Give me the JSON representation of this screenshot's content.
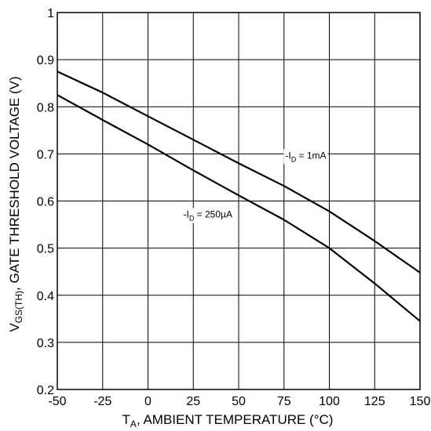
{
  "chart_data": {
    "type": "line",
    "title": "",
    "xlabel": "AMBIENT TEMPERATURE (°C)",
    "xlabel_symbol": {
      "base": "T",
      "sub": "A",
      "suffix": ","
    },
    "ylabel": "GATE THRESHOLD VOLTAGE (V)",
    "ylabel_symbol": {
      "base": "V",
      "sub": "GS(TH)",
      "suffix": ","
    },
    "xlim": [
      -50,
      150
    ],
    "ylim": [
      0.2,
      1.0
    ],
    "x_ticks": [
      "-50",
      "-25",
      "0",
      "25",
      "50",
      "75",
      "100",
      "125",
      "150"
    ],
    "y_ticks": [
      "0.2",
      "0.3",
      "0.4",
      "0.5",
      "0.6",
      "0.7",
      "0.8",
      "0.9",
      "1"
    ],
    "grid": true,
    "legend": "none",
    "series": [
      {
        "name": "-ID = 1mA",
        "label": {
          "prefix": "-I",
          "sub": "D",
          "suffix": " = 1mA"
        },
        "color": "#000000",
        "x": [
          -50,
          -25,
          0,
          25,
          50,
          75,
          100,
          125,
          150
        ],
        "y": [
          0.875,
          0.83,
          0.78,
          0.73,
          0.68,
          0.632,
          0.578,
          0.515,
          0.448
        ]
      },
      {
        "name": "-ID = 250µA",
        "label": {
          "prefix": "-I",
          "sub": "D",
          "suffix": " = 250µA"
        },
        "color": "#000000",
        "x": [
          -50,
          -25,
          0,
          25,
          50,
          75,
          100,
          125,
          150
        ],
        "y": [
          0.825,
          0.772,
          0.72,
          0.665,
          0.612,
          0.56,
          0.5,
          0.425,
          0.345
        ]
      }
    ]
  }
}
